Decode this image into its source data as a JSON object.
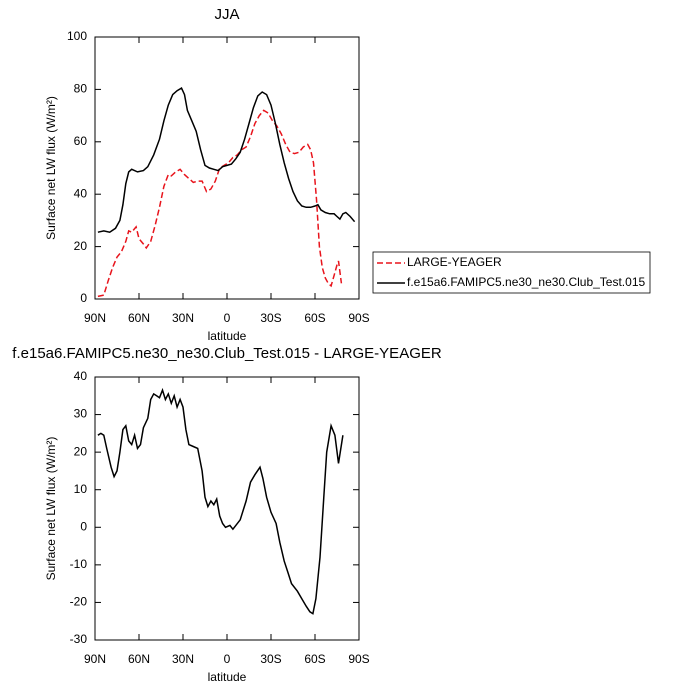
{
  "chart_data": [
    {
      "type": "line",
      "title": "JJA",
      "xlabel": "latitude",
      "ylabel": "Surface net LW flux (W/m²)",
      "xlim": [
        90,
        -90
      ],
      "xticks": [
        {
          "value": 90,
          "label": "90N"
        },
        {
          "value": 60,
          "label": "60N"
        },
        {
          "value": 30,
          "label": "30N"
        },
        0,
        {
          "value": -30,
          "label": "30S"
        },
        {
          "value": -60,
          "label": "60S"
        },
        {
          "value": -90,
          "label": "90S"
        }
      ],
      "ylim": [
        0,
        100
      ],
      "yticks": [
        0,
        20,
        40,
        60,
        80,
        100
      ],
      "legend": "right",
      "series": [
        {
          "name": "LARGE-YEAGER",
          "color": "#e8141c",
          "linestyle": "dashed",
          "x": [
            88,
            84,
            81,
            78,
            75,
            72,
            69,
            67,
            65,
            62,
            60,
            57,
            55,
            52,
            49,
            46,
            43,
            40,
            38,
            35,
            32,
            29,
            26,
            23,
            20,
            17,
            14,
            11,
            8,
            5,
            2,
            -1,
            -4,
            -7,
            -10,
            -13,
            -16,
            -19,
            -22,
            -25,
            -28,
            -31,
            -34,
            -37,
            -40,
            -43,
            -46,
            -49,
            -52,
            -55,
            -57,
            -59,
            -61,
            -63,
            -65,
            -67,
            -69,
            -71,
            -73,
            -75,
            -76,
            -78
          ],
          "values": [
            1,
            1.5,
            7,
            12,
            16,
            18,
            22,
            26,
            25.5,
            27.5,
            23,
            21,
            19.5,
            22,
            28,
            35,
            43,
            47.5,
            47,
            48.5,
            49.5,
            47.5,
            46,
            44.5,
            45,
            45,
            41,
            42,
            45,
            50,
            51,
            52,
            54,
            55,
            57,
            58,
            62,
            67,
            70,
            72,
            71,
            68,
            66,
            63,
            59,
            56,
            55.5,
            56,
            58,
            59,
            57,
            52,
            38,
            20,
            12,
            8,
            6,
            5,
            9,
            13,
            14.5,
            6
          ]
        },
        {
          "name": "f.e15a6.FAMIPC5.ne30_ne30.Club_Test.015",
          "color": "#000000",
          "linestyle": "solid",
          "x": [
            88,
            84,
            80,
            76,
            73,
            71,
            69,
            67,
            65,
            61,
            57,
            54,
            50,
            46,
            43,
            40,
            37,
            34,
            31,
            29,
            27,
            24,
            21,
            18,
            15,
            12,
            9,
            6,
            3,
            0,
            -3,
            -6,
            -9,
            -12,
            -15,
            -18,
            -21,
            -24,
            -27,
            -30,
            -33,
            -36,
            -39,
            -42,
            -45,
            -48,
            -51,
            -54,
            -57,
            -60,
            -62,
            -64,
            -67,
            -70,
            -73,
            -75,
            -77,
            -79,
            -81,
            -84,
            -87
          ],
          "values": [
            25.5,
            26,
            25.5,
            27,
            30,
            36,
            44,
            48.5,
            49.5,
            48.5,
            49,
            50.5,
            55,
            61,
            68,
            74,
            78,
            79.5,
            80.5,
            78,
            72,
            68,
            64,
            57,
            51,
            50,
            49.5,
            49,
            50.5,
            51,
            51.5,
            53.5,
            56,
            61,
            67,
            73,
            77.5,
            79,
            78,
            74,
            67,
            59,
            52,
            46,
            41,
            37.5,
            35.5,
            35,
            35,
            35.5,
            36,
            34,
            33,
            32.5,
            32.5,
            31.5,
            30.5,
            32.5,
            33,
            31.5,
            29.5
          ]
        }
      ]
    },
    {
      "type": "line",
      "title": "f.e15a6.FAMIPC5.ne30_ne30.Club_Test.015 - LARGE-YEAGER",
      "xlabel": "latitude",
      "ylabel": "Surface net LW flux (W/m²)",
      "xlim": [
        90,
        -90
      ],
      "xticks": [
        {
          "value": 90,
          "label": "90N"
        },
        {
          "value": 60,
          "label": "60N"
        },
        {
          "value": 30,
          "label": "30N"
        },
        0,
        {
          "value": -30,
          "label": "30S"
        },
        {
          "value": -60,
          "label": "60S"
        },
        {
          "value": -90,
          "label": "90S"
        }
      ],
      "ylim": [
        -30,
        40
      ],
      "yticks": [
        -30,
        -20,
        -10,
        0,
        10,
        20,
        30,
        40
      ],
      "series": [
        {
          "color": "#000000",
          "linestyle": "solid",
          "x": [
            88,
            86,
            84,
            82,
            79,
            77,
            75,
            73,
            71,
            69,
            67,
            65,
            63,
            61,
            59,
            57,
            54,
            52,
            50,
            48,
            46,
            44,
            42,
            40,
            38,
            36,
            34,
            32,
            30,
            28,
            26,
            23,
            20,
            17,
            15,
            13,
            11,
            9,
            7,
            5,
            3,
            1,
            -2,
            -4,
            -9,
            -13,
            -16,
            -19,
            -22.5,
            -24.5,
            -27,
            -30,
            -33.5,
            -36,
            -39,
            -41.5,
            -44,
            -48,
            -51,
            -54,
            -56.5,
            -58.6,
            -60.6,
            -63.4,
            -66,
            -68,
            -71,
            -73.6,
            -76,
            -79
          ],
          "values": [
            24.5,
            25,
            24.5,
            21,
            16,
            13.5,
            15,
            20,
            26,
            27,
            23,
            22,
            24.5,
            21,
            22,
            26.5,
            29,
            34,
            35.5,
            35,
            34.5,
            36.5,
            34,
            35.5,
            33,
            35,
            32,
            34,
            32,
            26,
            22,
            21.5,
            21,
            15,
            8,
            5.5,
            7,
            6,
            7.5,
            3,
            1,
            0,
            0.5,
            -0.5,
            2,
            7,
            12,
            14,
            16,
            13,
            8,
            4,
            1,
            -4,
            -9,
            -12,
            -15,
            -17,
            -19,
            -21,
            -22.5,
            -23,
            -19,
            -8,
            8,
            20,
            27,
            24.5,
            17,
            24.5
          ]
        }
      ]
    }
  ]
}
